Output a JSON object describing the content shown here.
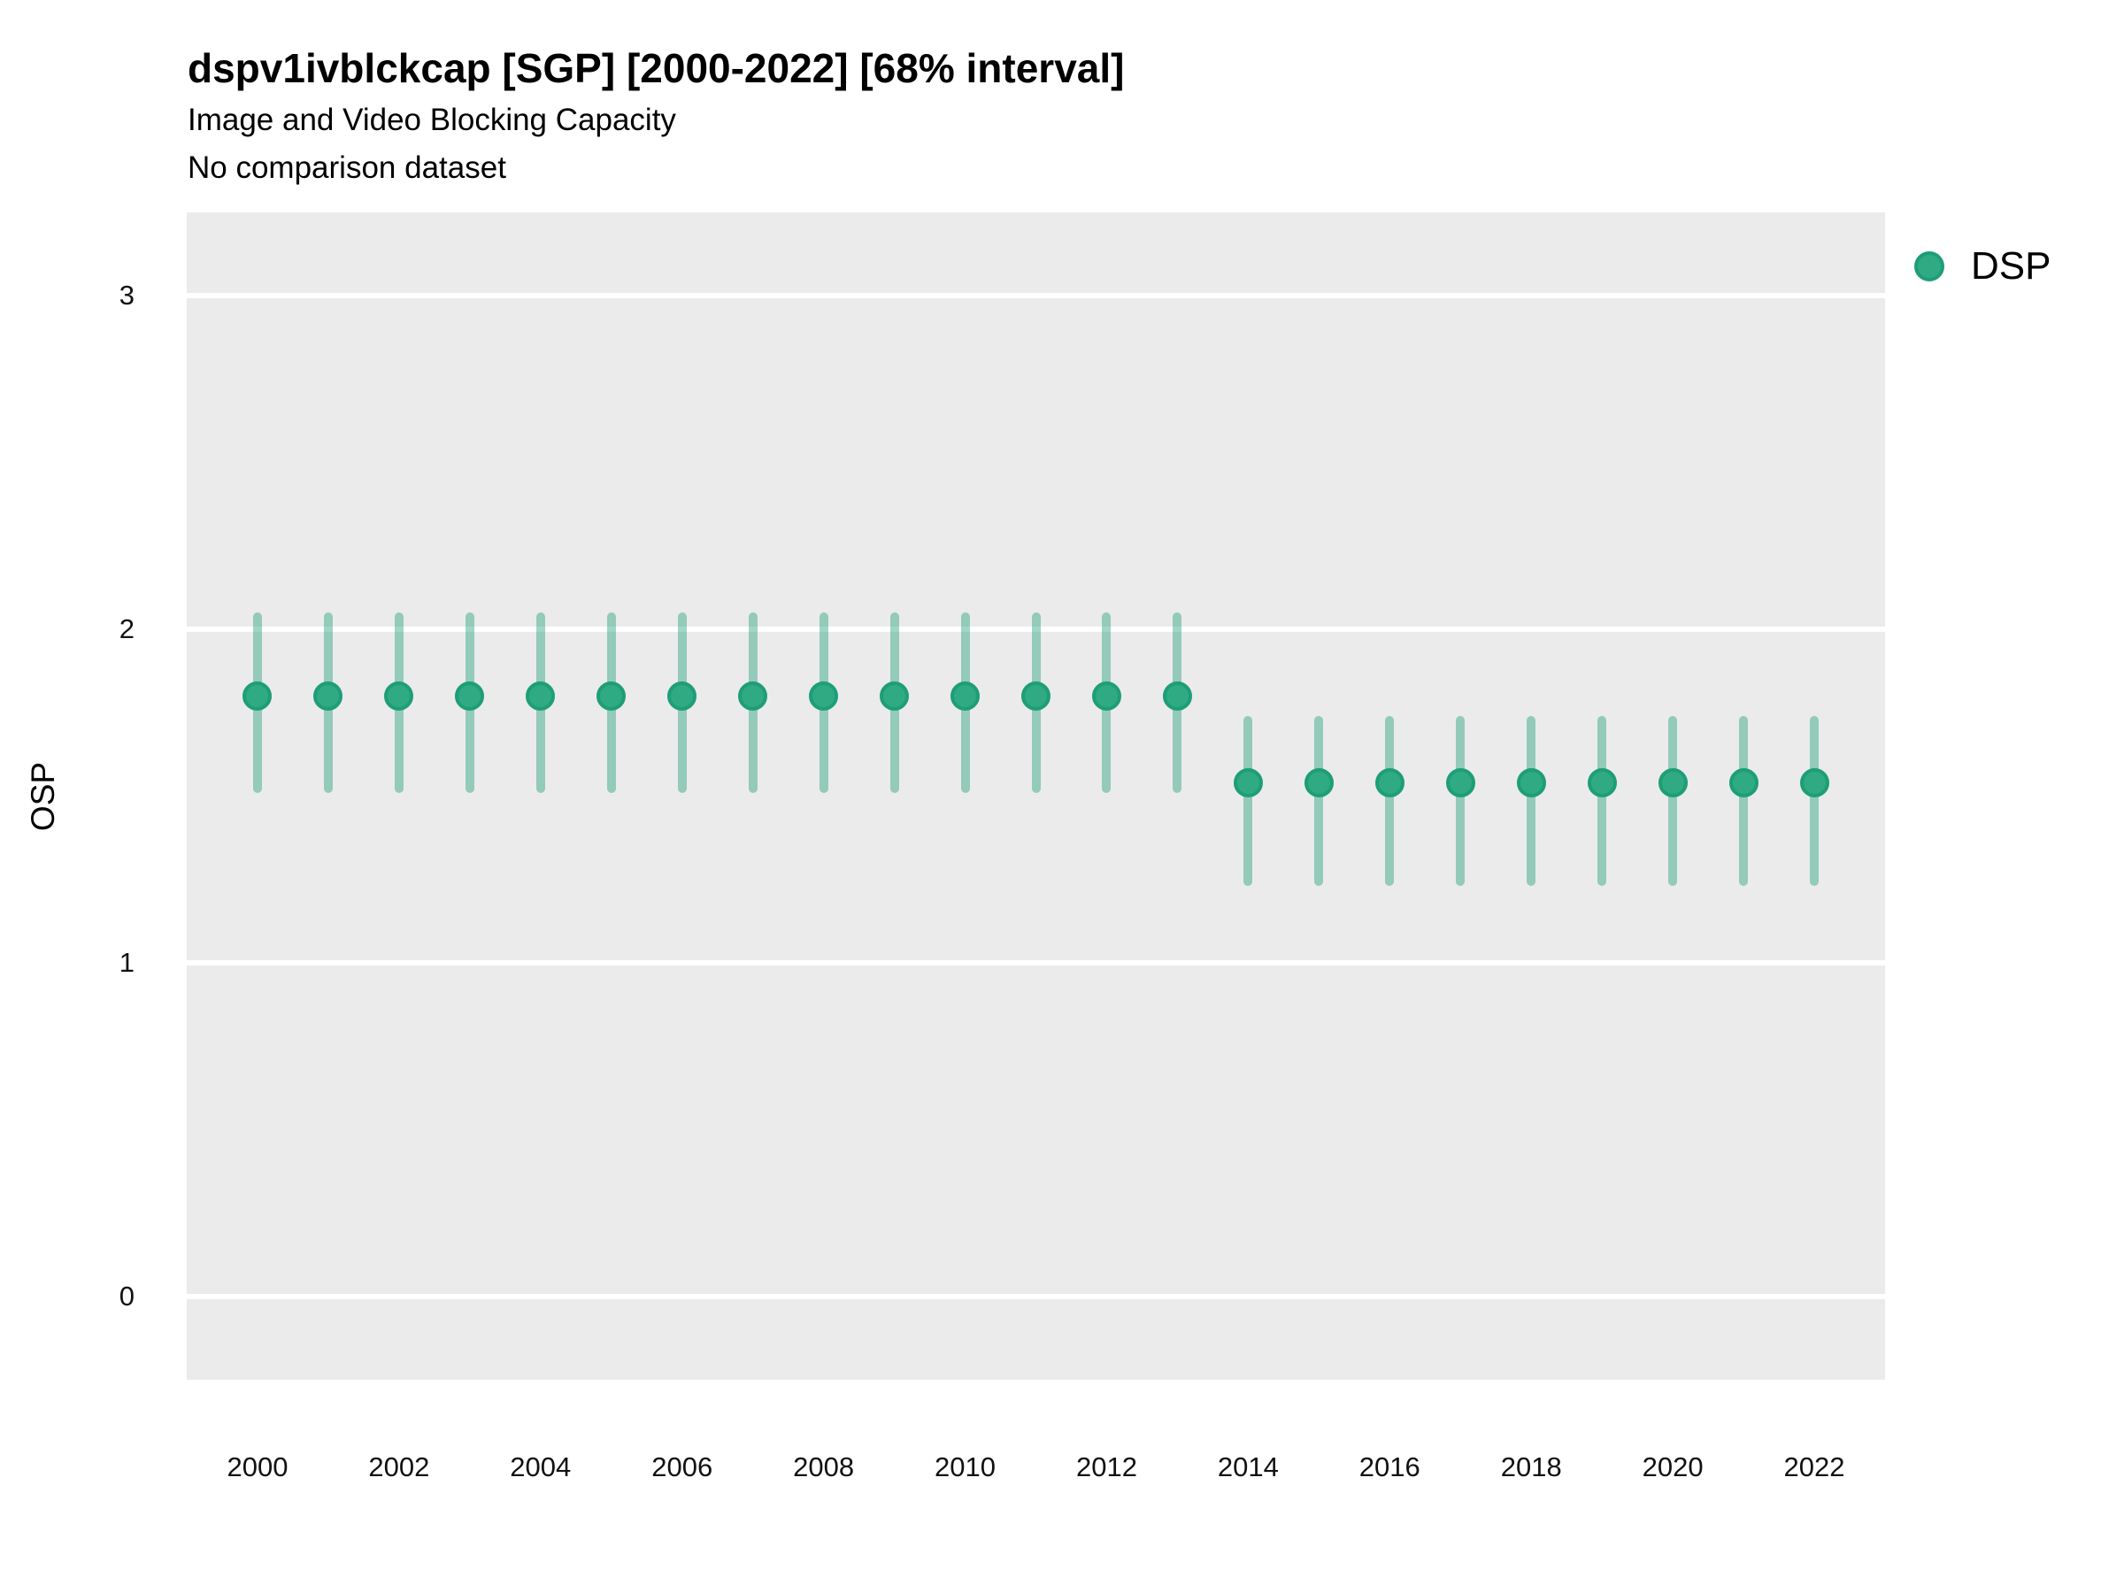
{
  "colors": {
    "point_fill": "#2FAA83",
    "point_stroke": "#1E9E77",
    "interval_bar": "rgba(27,158,119,0.42)",
    "panel_bg": "#EBEBEB",
    "gridline": "#FFFFFF",
    "text": "#111111"
  },
  "legend": {
    "label": "DSP",
    "position": "right-top"
  },
  "chart_data": {
    "type": "scatter",
    "subtype": "pointrange",
    "title": "dspv1ivblckcap [SGP] [2000-2022] [68% interval]",
    "subtitle": "Image and Video Blocking Capacity",
    "note": "No comparison dataset",
    "interval_label": "68% interval",
    "xlabel": "",
    "ylabel": "OSP",
    "x": [
      2000,
      2001,
      2002,
      2003,
      2004,
      2005,
      2006,
      2007,
      2008,
      2009,
      2010,
      2011,
      2012,
      2013,
      2014,
      2015,
      2016,
      2017,
      2018,
      2019,
      2020,
      2021,
      2022
    ],
    "series": [
      {
        "name": "DSP",
        "values": [
          1.8,
          1.8,
          1.8,
          1.8,
          1.8,
          1.8,
          1.8,
          1.8,
          1.8,
          1.8,
          1.8,
          1.8,
          1.8,
          1.8,
          1.54,
          1.54,
          1.54,
          1.54,
          1.54,
          1.54,
          1.54,
          1.54,
          1.54
        ],
        "lower": [
          1.51,
          1.51,
          1.51,
          1.51,
          1.51,
          1.51,
          1.51,
          1.51,
          1.51,
          1.51,
          1.51,
          1.51,
          1.51,
          1.51,
          1.23,
          1.23,
          1.23,
          1.23,
          1.23,
          1.23,
          1.23,
          1.23,
          1.23
        ],
        "upper": [
          2.05,
          2.05,
          2.05,
          2.05,
          2.05,
          2.05,
          2.05,
          2.05,
          2.05,
          2.05,
          2.05,
          2.05,
          2.05,
          2.05,
          1.74,
          1.74,
          1.74,
          1.74,
          1.74,
          1.74,
          1.74,
          1.74,
          1.74
        ]
      }
    ],
    "x_ticks": [
      2000,
      2002,
      2004,
      2006,
      2008,
      2010,
      2012,
      2014,
      2016,
      2018,
      2020,
      2022
    ],
    "y_ticks": [
      0,
      1,
      2,
      3
    ],
    "xlim": [
      1999,
      2023
    ],
    "ylim": [
      -0.25,
      3.25
    ],
    "grid": "horizontal-major-only",
    "legend_position": "right"
  }
}
